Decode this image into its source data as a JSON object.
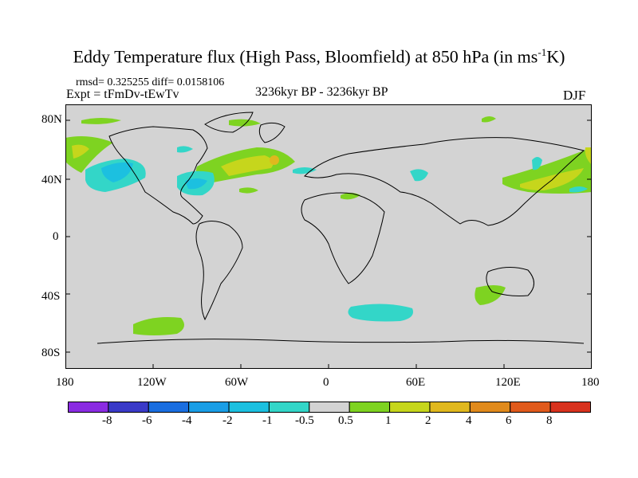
{
  "title": {
    "main": "Eddy Temperature flux (High Pass, Bloomfield) at 850 hPa (in ms",
    "sup": "-1",
    "tail": "K)"
  },
  "stats": {
    "rmsd": "rmsd= 0.325255  diff= 0.0158106"
  },
  "experiment": "Expt = tFmDv-tEwTv",
  "period": "3236kyr BP - 3236kyr BP",
  "season": "DJF",
  "axes": {
    "y_labels": [
      "80N",
      "40N",
      "0",
      "40S",
      "80S"
    ],
    "x_labels": [
      "180",
      "120W",
      "60W",
      "0",
      "60E",
      "120E",
      "180"
    ]
  },
  "colorbar": {
    "labels": [
      "-8",
      "-6",
      "-4",
      "-2",
      "-1",
      "-0.5",
      "0.5",
      "1",
      "2",
      "4",
      "6",
      "8"
    ],
    "colors": [
      "#8a2be2",
      "#3a3ac8",
      "#1a6ee0",
      "#1a9ee6",
      "#1cc0e0",
      "#33d6c8",
      "#d3d3d3",
      "#7ed321",
      "#c6d61c",
      "#e0b81e",
      "#e08a1c",
      "#e05a1c",
      "#d8321e"
    ]
  }
}
